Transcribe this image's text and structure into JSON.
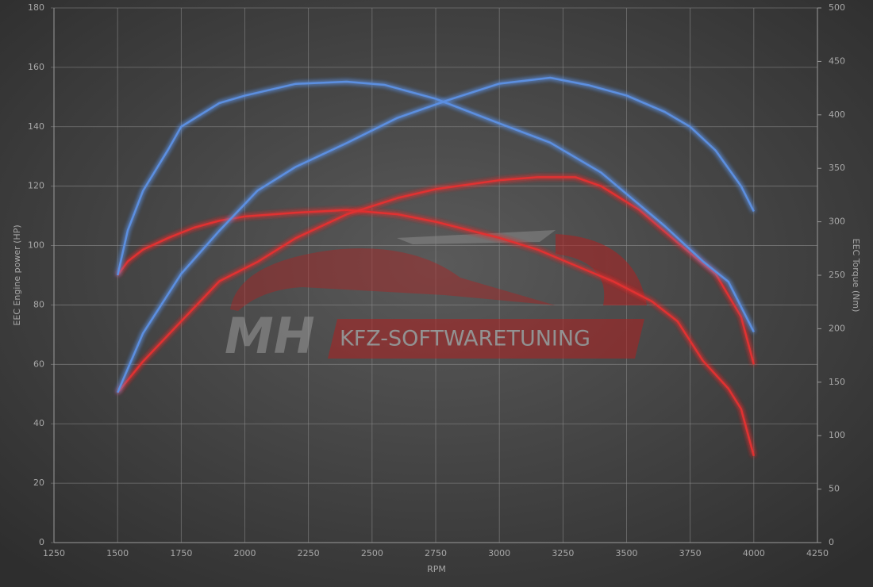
{
  "chart_data": {
    "type": "line",
    "xlabel": "RPM",
    "ylabel": "EEC Engine power (HP)",
    "y2label": "EEC Torque (Nm)",
    "xlim": [
      1250,
      4250
    ],
    "xticks": [
      1250,
      1500,
      1750,
      2000,
      2250,
      2500,
      2750,
      3000,
      3250,
      3500,
      3750,
      4000,
      4250
    ],
    "ylim": [
      0,
      180
    ],
    "yticks": [
      0,
      20,
      40,
      60,
      80,
      100,
      120,
      140,
      160,
      180
    ],
    "y2lim": [
      0,
      500
    ],
    "y2ticks": [
      0,
      50,
      100,
      150,
      200,
      250,
      300,
      350,
      400,
      450,
      500
    ],
    "grid": true,
    "watermark": {
      "logo": "MH",
      "text": "KFZ-SOFTWARETUNING"
    },
    "series": [
      {
        "color": "#e03030",
        "axis": "y2",
        "x": [
          1500,
          1540,
          1600,
          1700,
          1800,
          1900,
          2000,
          2200,
          2400,
          2600,
          2750,
          2900,
          3000,
          3150,
          3300,
          3450,
          3600,
          3700,
          3800,
          3900,
          3950,
          4000
        ],
        "values": [
          250,
          263,
          274,
          285,
          294.5,
          301,
          305,
          308.5,
          311,
          307,
          300,
          291,
          285,
          274,
          259,
          244,
          225.5,
          207,
          170,
          144,
          125,
          81
        ]
      },
      {
        "color": "#e03030",
        "axis": "y",
        "x": [
          1500,
          1600,
          1750,
          1900,
          2050,
          2200,
          2400,
          2600,
          2750,
          3000,
          3150,
          3300,
          3400,
          3550,
          3700,
          3850,
          3950,
          4000
        ],
        "values": [
          50.5,
          61,
          74.5,
          88,
          94.5,
          102.5,
          110.5,
          116,
          119,
          122,
          123,
          123,
          120,
          112,
          101,
          90.5,
          76,
          60
        ]
      },
      {
        "color": "#5b8fe0",
        "axis": "y2",
        "x": [
          1500,
          1540,
          1600,
          1700,
          1750,
          1900,
          2000,
          2200,
          2400,
          2550,
          2750,
          3000,
          3200,
          3400,
          3500,
          3650,
          3800,
          3900,
          4000
        ],
        "values": [
          250,
          292,
          329,
          368,
          389,
          411,
          418,
          429,
          431,
          428,
          415,
          392,
          374,
          346,
          326,
          296,
          263,
          244,
          197
        ]
      },
      {
        "color": "#5b8fe0",
        "axis": "y",
        "x": [
          1500,
          1600,
          1750,
          1900,
          2050,
          2200,
          2400,
          2600,
          2800,
          3000,
          3200,
          3350,
          3500,
          3650,
          3750,
          3850,
          3950,
          4000
        ],
        "values": [
          50.5,
          70.5,
          90.5,
          105,
          118.5,
          126.5,
          134.5,
          143,
          149,
          154.5,
          156.5,
          154,
          150.5,
          145,
          140,
          132,
          120,
          111.5
        ]
      }
    ]
  }
}
